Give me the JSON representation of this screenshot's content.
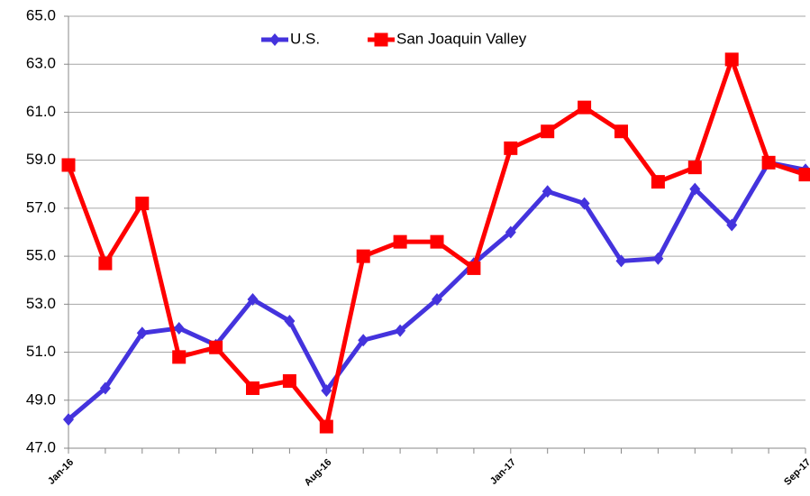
{
  "chart_data": {
    "type": "line",
    "categories": [
      "Jan-16",
      null,
      null,
      null,
      null,
      null,
      null,
      "Aug-16",
      null,
      null,
      null,
      null,
      "Jan-17",
      null,
      null,
      null,
      null,
      null,
      null,
      null,
      "Sep-17"
    ],
    "series": [
      {
        "name": "U.S.",
        "color": "#4433dd",
        "marker": "diamond",
        "values": [
          48.2,
          49.5,
          51.8,
          52.0,
          51.3,
          53.2,
          52.3,
          49.4,
          51.5,
          51.9,
          53.2,
          54.7,
          56.0,
          57.7,
          57.2,
          54.8,
          54.9,
          57.8,
          56.3,
          58.9,
          58.6
        ]
      },
      {
        "name": "San Joaquin Valley",
        "color": "#ff0000",
        "marker": "square",
        "values": [
          58.8,
          54.7,
          57.2,
          50.8,
          51.2,
          49.5,
          49.8,
          47.9,
          55.0,
          55.6,
          55.6,
          54.5,
          59.5,
          60.2,
          61.2,
          60.2,
          58.1,
          58.7,
          63.2,
          58.9,
          58.4
        ]
      }
    ],
    "ylim": [
      47,
      65
    ],
    "yticks": [
      {
        "value": 47,
        "label": "47.0"
      },
      {
        "value": 49,
        "label": "49.0"
      },
      {
        "value": 51,
        "label": "51.0"
      },
      {
        "value": 53,
        "label": "53.0"
      },
      {
        "value": 55,
        "label": "55.0"
      },
      {
        "value": 57,
        "label": "57.0"
      },
      {
        "value": 59,
        "label": "59.0"
      },
      {
        "value": 61,
        "label": "61.0"
      },
      {
        "value": 63,
        "label": "63.0"
      },
      {
        "value": 65,
        "label": "65.0"
      }
    ],
    "grid": true,
    "legend": "top"
  }
}
